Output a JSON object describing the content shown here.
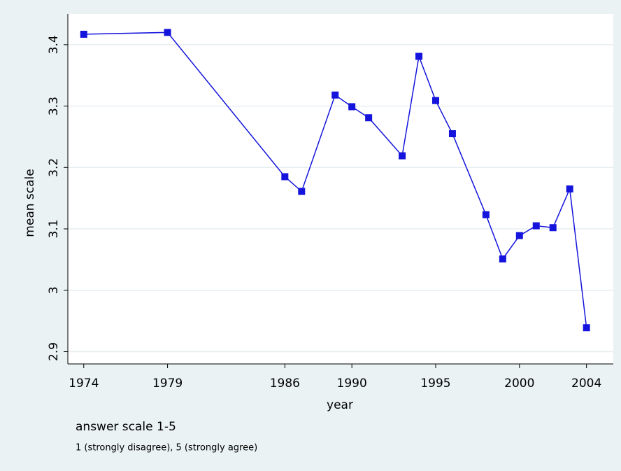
{
  "chart_data": {
    "type": "line",
    "x_label": "year",
    "y_label": "mean scale",
    "notes": [
      "answer scale 1-5",
      "1 (strongly disagree), 5 (strongly agree)"
    ],
    "x": [
      1974,
      1979,
      1986,
      1987,
      1989,
      1990,
      1991,
      1993,
      1994,
      1995,
      1996,
      1998,
      1999,
      2000,
      2001,
      2002,
      2003,
      2004
    ],
    "series": [
      {
        "color": "#1414dc",
        "values": [
          3.417,
          3.42,
          3.185,
          3.161,
          3.318,
          3.299,
          3.281,
          3.219,
          3.381,
          3.309,
          3.255,
          3.123,
          3.051,
          3.089,
          3.105,
          3.102,
          3.165,
          2.939
        ]
      }
    ],
    "xlim": [
      1973.05,
      2005.6
    ],
    "xticks": [
      1974,
      1979,
      1986,
      1990,
      1995,
      2000,
      2004
    ],
    "ylim": [
      2.88,
      3.45
    ],
    "yticks": [
      2.9,
      3,
      3.1,
      3.2,
      3.3,
      3.4
    ],
    "grid": true
  }
}
